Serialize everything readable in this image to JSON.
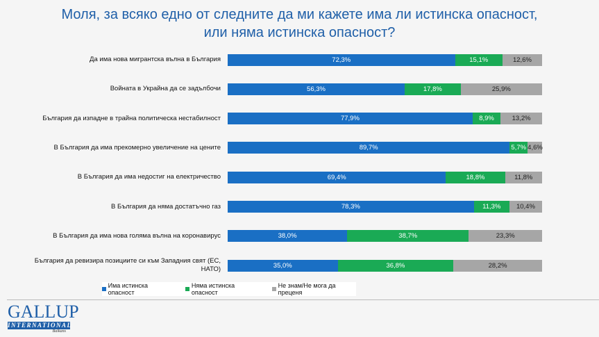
{
  "chart_data": {
    "type": "bar",
    "stacked": true,
    "orientation": "horizontal",
    "title": [
      "Моля, за всяко едно от следните да ми кажете има ли истинска опасност,",
      "или няма истинска опасност?"
    ],
    "categories": [
      "Да има нова мигрантска вълна в България",
      "Войната в Украйна да се задълбочи",
      "България да изпадне в трайна политическа нестабилност",
      "В България да има прекомерно увеличение на цените",
      "В България да има недостиг на електричество",
      "В България да няма достатъчно газ",
      "В България да има нова голяма вълна на коронавирус",
      "България да ревизира позициите си към Западния свят (ЕС, НАТО)"
    ],
    "series": [
      {
        "name": "Има истинска опасност",
        "color": "#1a6fc4",
        "values": [
          72.3,
          56.3,
          77.9,
          89.7,
          69.4,
          78.3,
          38.0,
          35.0
        ]
      },
      {
        "name": "Няма истинска опасност",
        "color": "#1aaa55",
        "values": [
          15.1,
          17.8,
          8.9,
          5.7,
          18.8,
          11.3,
          38.7,
          36.8
        ]
      },
      {
        "name": "Не знам/Не мога да преценя",
        "color": "#a6a6a6",
        "values": [
          12.6,
          25.9,
          13.2,
          4.6,
          11.8,
          10.4,
          23.3,
          28.2
        ]
      }
    ],
    "xlim": [
      0,
      100
    ],
    "legend": "bottom",
    "grid": false
  },
  "logo": {
    "name": "GALLUP",
    "sub": "INTERNATIONAL",
    "region": "Balkans"
  }
}
